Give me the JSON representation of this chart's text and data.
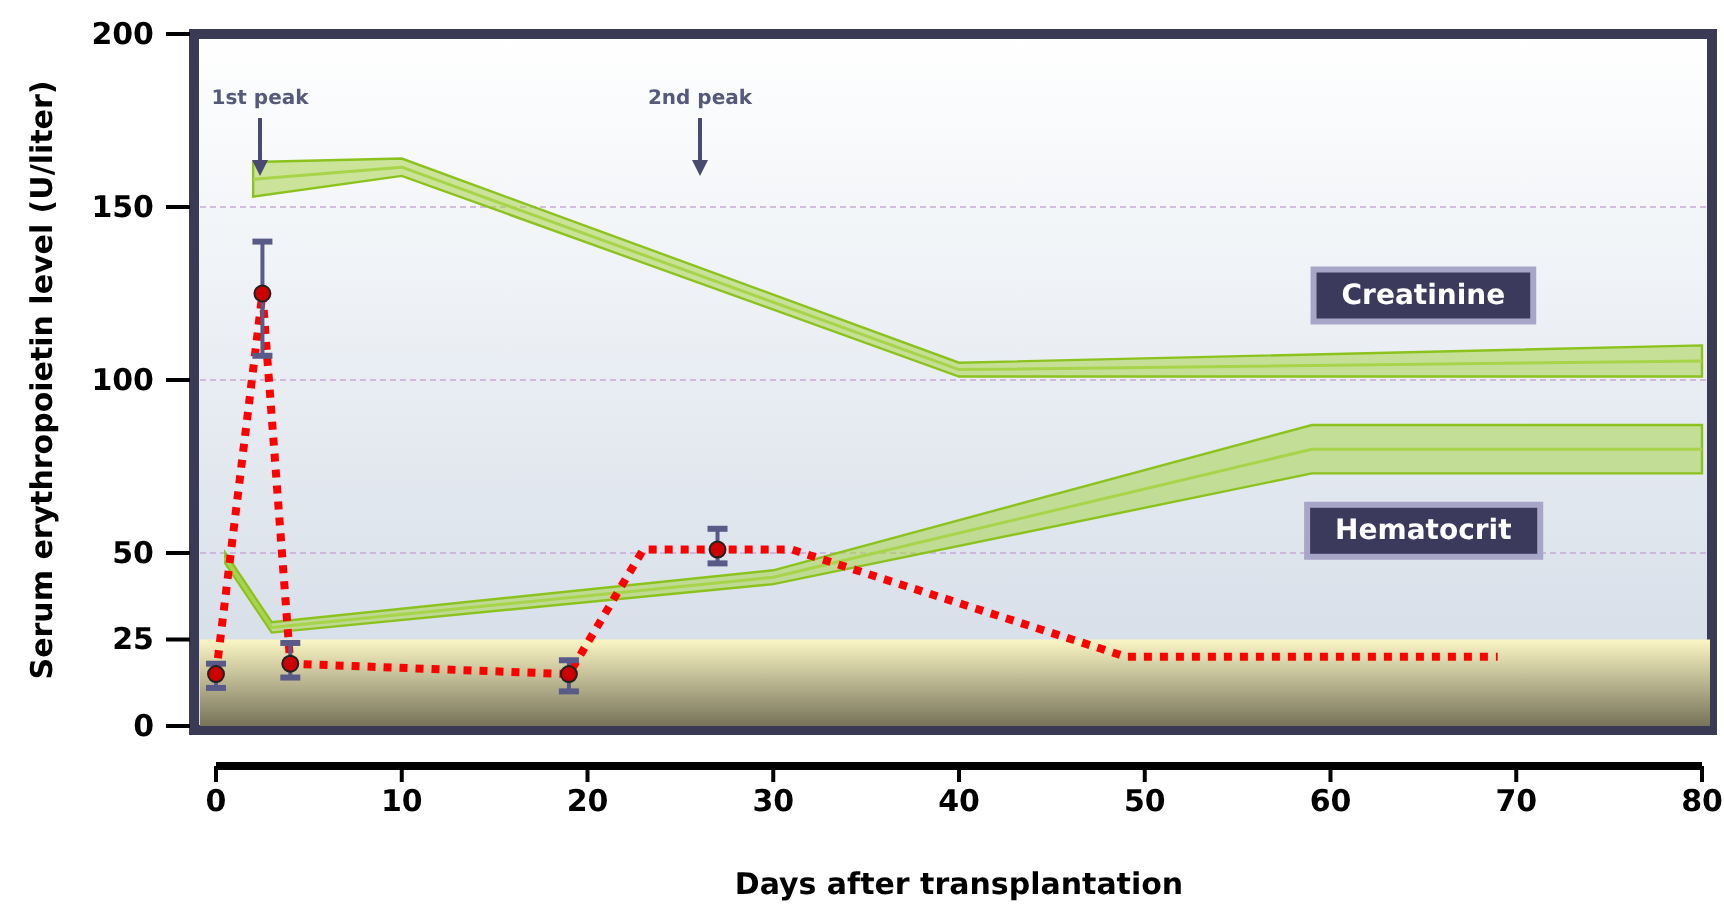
{
  "chart_data": {
    "type": "line",
    "xlabel": "Days after transplantation",
    "ylabel": "Serum erythropoietin level (U/liter)",
    "xlim": [
      0,
      80
    ],
    "xticks": [
      0,
      10,
      20,
      30,
      40,
      50,
      60,
      70,
      80
    ],
    "ylim": [
      0,
      200
    ],
    "yticks": [
      0,
      25,
      50,
      100,
      150,
      200
    ],
    "grid": "y",
    "legend": false,
    "bands": [
      {
        "axis": "y",
        "from": 0,
        "to": 25,
        "color": "#fbf6c4"
      }
    ],
    "annotations": [
      "1st peak",
      "2nd peak"
    ],
    "series": [
      {
        "name": "Creatinine",
        "type": "line",
        "color": "#a8d44a",
        "x": [
          2,
          10,
          40,
          80
        ],
        "values": [
          158,
          161.5,
          103,
          105.5
        ],
        "lower": [
          153,
          159,
          101,
          101
        ],
        "upper": [
          163,
          164,
          105,
          110
        ]
      },
      {
        "name": "Hematocrit",
        "type": "line",
        "color": "#a8d44a",
        "x": [
          0.5,
          3,
          30,
          59,
          80
        ],
        "values": [
          48.5,
          28.5,
          43,
          80,
          80
        ],
        "lower": [
          47,
          27,
          41,
          73,
          73
        ],
        "upper": [
          50,
          30,
          45,
          87,
          87
        ]
      },
      {
        "type": "line",
        "color": "#ff0000",
        "line_style": "dotted",
        "marker": "none",
        "x": [
          0,
          2.5,
          4,
          19,
          23,
          31,
          49,
          69
        ],
        "values": [
          15,
          125,
          18,
          15,
          51,
          51,
          20,
          20
        ]
      },
      {
        "type": "scatter",
        "color": "#cc0000",
        "marker": "circle",
        "x": [
          0,
          2.5,
          4,
          19,
          27
        ],
        "values": [
          15,
          125,
          18,
          15,
          51
        ],
        "errors": [
          [
            11,
            18
          ],
          [
            107,
            140
          ],
          [
            14,
            24
          ],
          [
            10,
            19
          ],
          [
            47,
            57
          ]
        ]
      }
    ]
  }
}
